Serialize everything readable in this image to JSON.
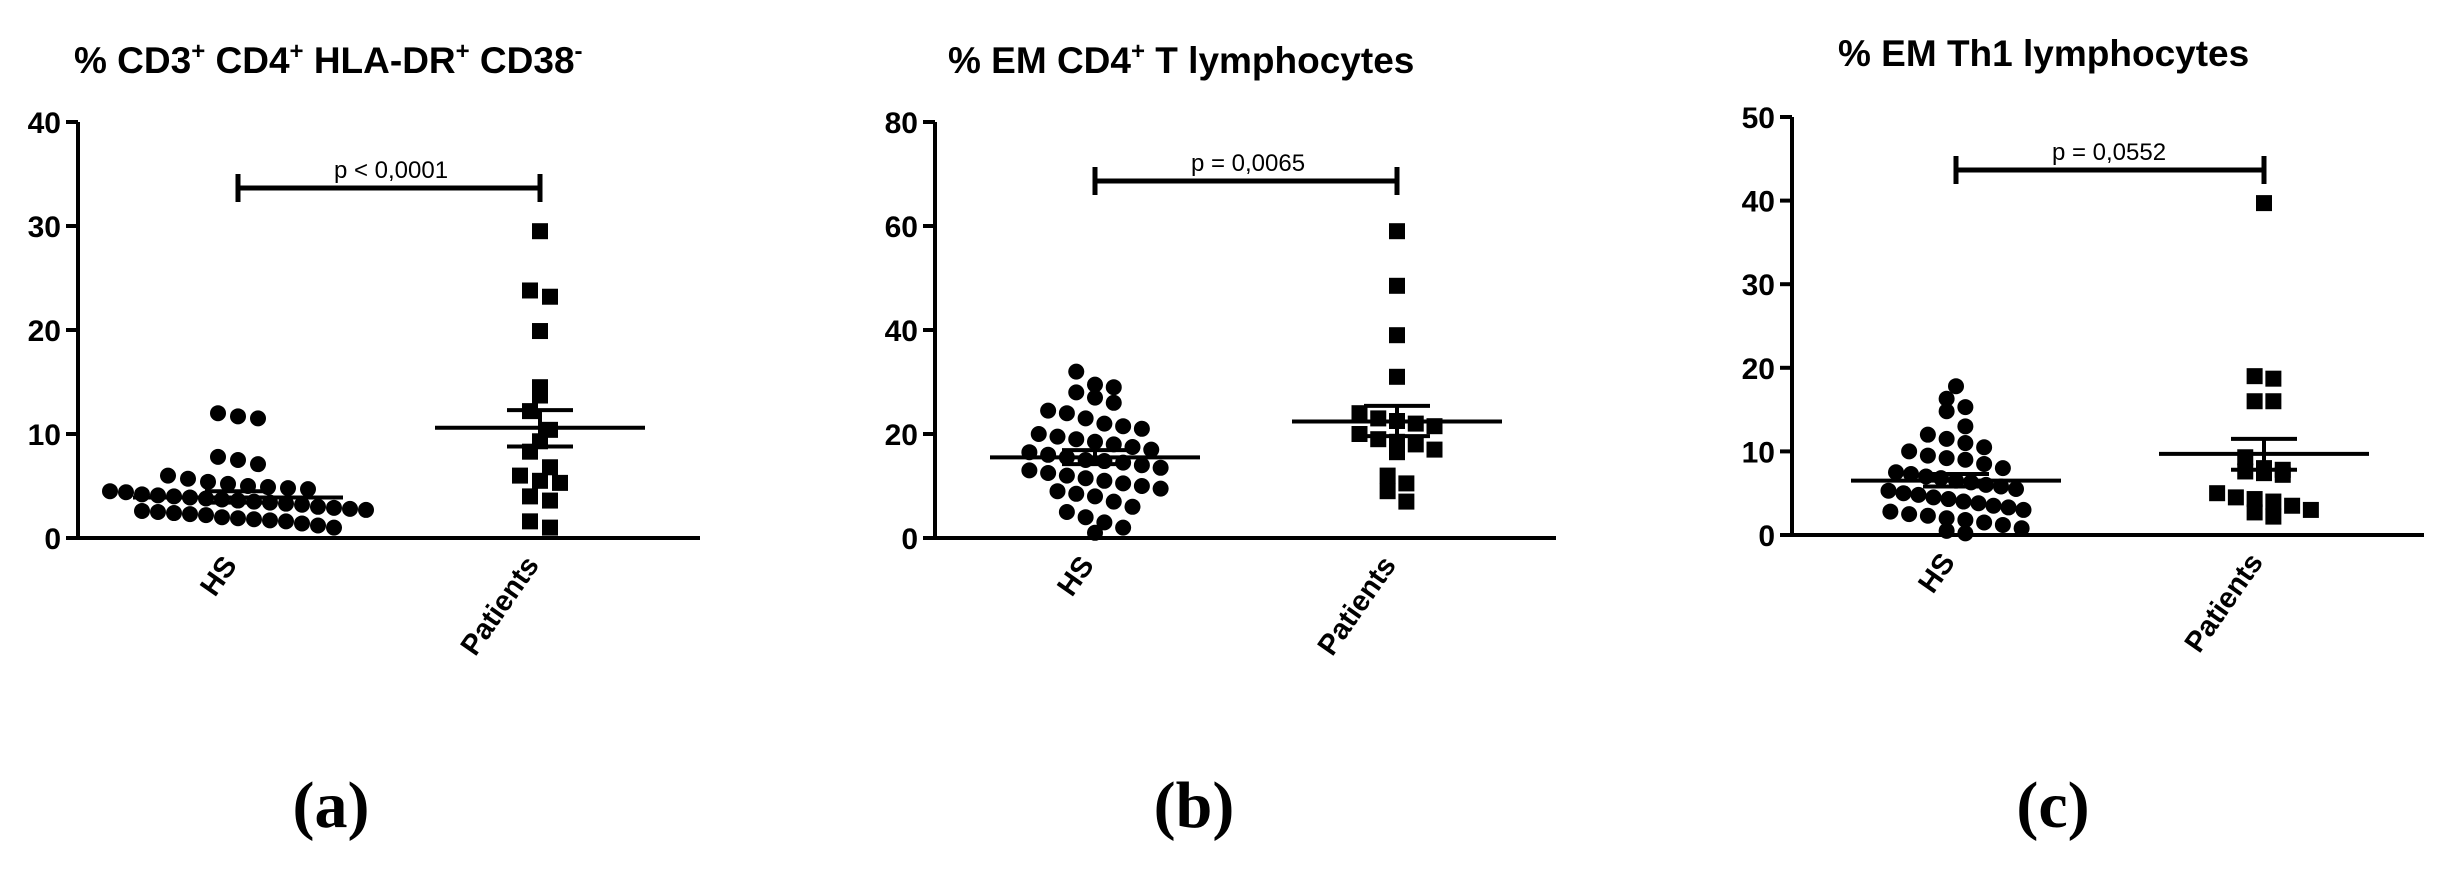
{
  "chart_data": [
    {
      "type": "scatter",
      "title_parts": [
        {
          "text": "% CD3",
          "sup": false
        },
        {
          "text": "+",
          "sup": true
        },
        {
          "text": " CD4",
          "sup": false
        },
        {
          "text": "+",
          "sup": true
        },
        {
          "text": " HLA-DR",
          "sup": false
        },
        {
          "text": "+",
          "sup": true
        },
        {
          "text": " CD38",
          "sup": false
        },
        {
          "text": "-",
          "sup": true
        }
      ],
      "panel_label": "(a)",
      "categories": [
        "HS",
        "Patients"
      ],
      "ylim": [
        0,
        40
      ],
      "yticks": [
        0,
        10,
        20,
        30,
        40
      ],
      "tick_labels": [
        "0",
        "10",
        "20",
        "30",
        "40"
      ],
      "annotation": "p < 0,0001",
      "series": [
        {
          "category": "HS",
          "marker": "circle",
          "mean": 3.9,
          "sem_upper": 4.5,
          "sem_lower": 3.4,
          "values": [
            12.0,
            11.7,
            11.5,
            7.8,
            7.5,
            7.1,
            6.0,
            5.7,
            5.4,
            5.2,
            5.0,
            4.9,
            4.8,
            4.7,
            4.5,
            4.4,
            4.2,
            4.1,
            4.0,
            3.9,
            3.8,
            3.7,
            3.6,
            3.5,
            3.4,
            3.3,
            3.2,
            3.0,
            2.9,
            2.8,
            2.7,
            2.6,
            2.5,
            2.4,
            2.3,
            2.2,
            2.0,
            1.9,
            1.8,
            1.7,
            1.6,
            1.4,
            1.2,
            1.0
          ]
        },
        {
          "category": "Patients",
          "marker": "square",
          "mean": 10.6,
          "sem_upper": 12.3,
          "sem_lower": 8.8,
          "values": [
            29.5,
            23.8,
            23.2,
            19.9,
            14.5,
            13.7,
            12.2,
            10.4,
            9.3,
            8.3,
            6.8,
            6.0,
            5.5,
            5.3,
            4.0,
            3.6,
            1.6,
            1.0
          ]
        }
      ]
    },
    {
      "type": "scatter",
      "title_parts": [
        {
          "text": "% EM CD4",
          "sup": false
        },
        {
          "text": "+",
          "sup": true
        },
        {
          "text": " T lymphocytes",
          "sup": false
        }
      ],
      "panel_label": "(b)",
      "categories": [
        "HS",
        "Patients"
      ],
      "ylim": [
        0,
        80
      ],
      "yticks": [
        0,
        20,
        40,
        60,
        80
      ],
      "tick_labels": [
        "0",
        "20",
        "40",
        "60",
        "80"
      ],
      "annotation": "p = 0,0065",
      "series": [
        {
          "category": "HS",
          "marker": "circle",
          "mean": 15.5,
          "sem_upper": 16.9,
          "sem_lower": 14.2,
          "values": [
            32,
            29.5,
            29,
            28,
            27,
            26,
            24.5,
            24,
            23,
            22,
            21.5,
            21,
            20,
            19.5,
            19,
            18.5,
            18,
            17.5,
            17,
            16.5,
            16,
            15.5,
            15,
            14.8,
            14.5,
            14,
            13.5,
            13,
            12.5,
            12,
            11.5,
            11,
            10.5,
            10,
            9.5,
            9,
            8.5,
            8,
            7,
            6,
            5,
            4,
            3,
            2,
            1
          ]
        },
        {
          "category": "Patients",
          "marker": "square",
          "mean": 22.4,
          "sem_upper": 25.4,
          "sem_lower": 19.6,
          "values": [
            59,
            48.5,
            39,
            31,
            24,
            23,
            22.5,
            22,
            21.5,
            20,
            19,
            18.5,
            18,
            17,
            16.5,
            12,
            10.5,
            9,
            7
          ]
        }
      ]
    },
    {
      "type": "scatter",
      "title_parts": [
        {
          "text": "% EM Th1 lymphocytes",
          "sup": false
        }
      ],
      "panel_label": "(c)",
      "categories": [
        "HS",
        "Patients"
      ],
      "ylim": [
        0,
        50
      ],
      "yticks": [
        0,
        10,
        20,
        30,
        40,
        50
      ],
      "tick_labels": [
        "0",
        "10",
        "20",
        "30",
        "40",
        "50"
      ],
      "annotation": "p = 0,0552",
      "series": [
        {
          "category": "HS",
          "marker": "circle",
          "mean": 6.5,
          "sem_upper": 7.3,
          "sem_lower": 5.8,
          "values": [
            17.8,
            16.3,
            15.3,
            14.8,
            13.0,
            12.0,
            11.5,
            11.0,
            10.5,
            10.0,
            9.5,
            9.2,
            9.0,
            8.5,
            8.0,
            7.5,
            7.3,
            7.0,
            6.8,
            6.5,
            6.3,
            6.0,
            5.8,
            5.5,
            5.3,
            5.0,
            4.8,
            4.5,
            4.3,
            4.0,
            3.8,
            3.5,
            3.3,
            3.0,
            2.8,
            2.5,
            2.3,
            2.0,
            1.8,
            1.5,
            1.2,
            0.8,
            0.5,
            0.2
          ]
        },
        {
          "category": "Patients",
          "marker": "square",
          "mean": 9.7,
          "sem_upper": 11.5,
          "sem_lower": 7.8,
          "values": [
            39.7,
            19.0,
            18.7,
            16.0,
            16.0,
            9.3,
            8.0,
            7.8,
            7.6,
            7.4,
            7.2,
            5.0,
            4.5,
            4.3,
            4.0,
            3.5,
            3.0,
            2.7,
            2.2
          ]
        }
      ]
    }
  ]
}
